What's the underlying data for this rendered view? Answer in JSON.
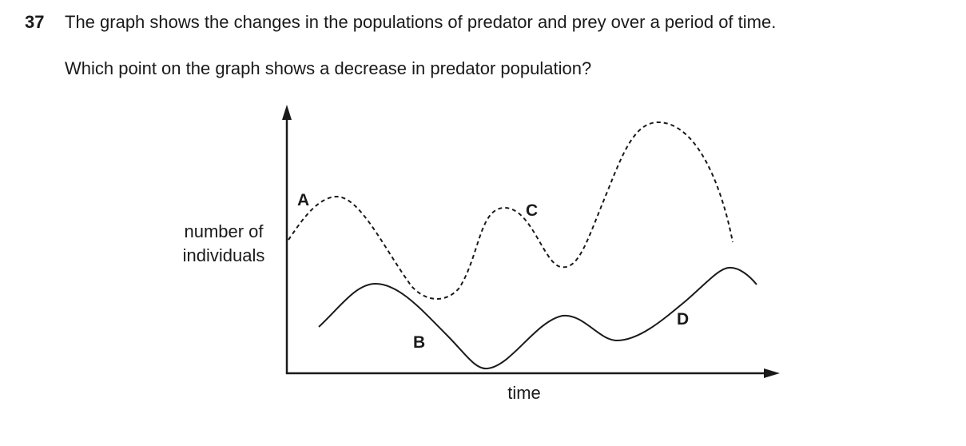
{
  "question": {
    "number": "37",
    "stem_line1": "The graph shows the changes in the populations of predator and prey over a period of time.",
    "stem_line2": "Which point on the graph shows a decrease in predator population?"
  },
  "graph": {
    "y_axis_label_line1": "number of",
    "y_axis_label_line2": "individuals",
    "x_axis_label": "time",
    "curves": [
      {
        "line_style": "dashed",
        "colour": "#1a1a1a"
      },
      {
        "line_style": "solid",
        "colour": "#1a1a1a"
      }
    ],
    "points": [
      {
        "label": "A",
        "on_curve": "dashed"
      },
      {
        "label": "B",
        "on_curve": "solid"
      },
      {
        "label": "C",
        "on_curve": "dashed"
      },
      {
        "label": "D",
        "on_curve": "solid"
      }
    ]
  }
}
